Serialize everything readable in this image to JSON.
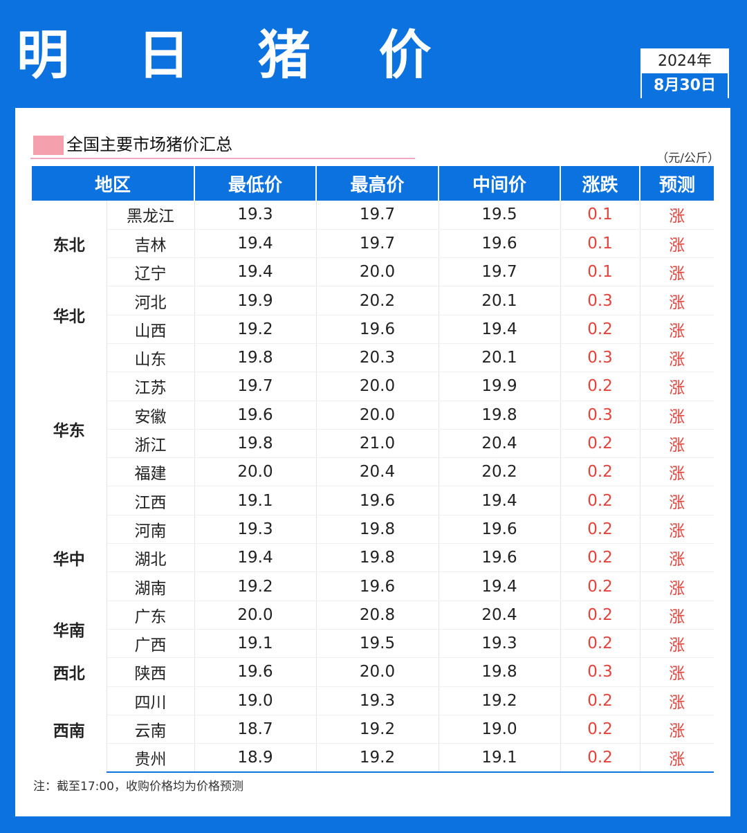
{
  "header": {
    "title": "明 日 猪 价",
    "year": "2024年",
    "date": "8月30日"
  },
  "section": {
    "title": "全国主要市场猪价汇总",
    "unit": "（元/公斤）"
  },
  "table": {
    "headers": [
      "地区",
      "最低价",
      "最高价",
      "中间价",
      "涨跌",
      "预测"
    ],
    "regions": [
      {
        "name": "东北",
        "rows": [
          {
            "province": "黑龙江",
            "low": "19.3",
            "high": "19.7",
            "mid": "19.5",
            "change": "0.1",
            "forecast": "涨"
          },
          {
            "province": "吉林",
            "low": "19.4",
            "high": "19.7",
            "mid": "19.6",
            "change": "0.1",
            "forecast": "涨"
          },
          {
            "province": "辽宁",
            "low": "19.4",
            "high": "20.0",
            "mid": "19.7",
            "change": "0.1",
            "forecast": "涨"
          }
        ]
      },
      {
        "name": "华北",
        "rows": [
          {
            "province": "河北",
            "low": "19.9",
            "high": "20.2",
            "mid": "20.1",
            "change": "0.3",
            "forecast": "涨"
          },
          {
            "province": "山西",
            "low": "19.2",
            "high": "19.6",
            "mid": "19.4",
            "change": "0.2",
            "forecast": "涨"
          }
        ]
      },
      {
        "name": "华东",
        "rows": [
          {
            "province": "山东",
            "low": "19.8",
            "high": "20.3",
            "mid": "20.1",
            "change": "0.3",
            "forecast": "涨"
          },
          {
            "province": "江苏",
            "low": "19.7",
            "high": "20.0",
            "mid": "19.9",
            "change": "0.2",
            "forecast": "涨"
          },
          {
            "province": "安徽",
            "low": "19.6",
            "high": "20.0",
            "mid": "19.8",
            "change": "0.3",
            "forecast": "涨"
          },
          {
            "province": "浙江",
            "low": "19.8",
            "high": "21.0",
            "mid": "20.4",
            "change": "0.2",
            "forecast": "涨"
          },
          {
            "province": "福建",
            "low": "20.0",
            "high": "20.4",
            "mid": "20.2",
            "change": "0.2",
            "forecast": "涨"
          },
          {
            "province": "江西",
            "low": "19.1",
            "high": "19.6",
            "mid": "19.4",
            "change": "0.2",
            "forecast": "涨"
          }
        ]
      },
      {
        "name": "华中",
        "rows": [
          {
            "province": "河南",
            "low": "19.3",
            "high": "19.8",
            "mid": "19.6",
            "change": "0.2",
            "forecast": "涨"
          },
          {
            "province": "湖北",
            "low": "19.4",
            "high": "19.8",
            "mid": "19.6",
            "change": "0.2",
            "forecast": "涨"
          },
          {
            "province": "湖南",
            "low": "19.2",
            "high": "19.6",
            "mid": "19.4",
            "change": "0.2",
            "forecast": "涨"
          }
        ]
      },
      {
        "name": "华南",
        "rows": [
          {
            "province": "广东",
            "low": "20.0",
            "high": "20.8",
            "mid": "20.4",
            "change": "0.2",
            "forecast": "涨"
          },
          {
            "province": "广西",
            "low": "19.1",
            "high": "19.5",
            "mid": "19.3",
            "change": "0.2",
            "forecast": "涨"
          }
        ]
      },
      {
        "name": "西北",
        "rows": [
          {
            "province": "陕西",
            "low": "19.6",
            "high": "20.0",
            "mid": "19.8",
            "change": "0.3",
            "forecast": "涨"
          }
        ]
      },
      {
        "name": "西南",
        "rows": [
          {
            "province": "四川",
            "low": "19.0",
            "high": "19.3",
            "mid": "19.2",
            "change": "0.2",
            "forecast": "涨"
          },
          {
            "province": "云南",
            "low": "18.7",
            "high": "19.2",
            "mid": "19.0",
            "change": "0.2",
            "forecast": "涨"
          },
          {
            "province": "贵州",
            "low": "18.9",
            "high": "19.2",
            "mid": "19.1",
            "change": "0.2",
            "forecast": "涨"
          }
        ]
      }
    ]
  },
  "note": "注：截至17:00，收购价格均为价格预测",
  "colors": {
    "brand_blue": "#0b72e0",
    "rise_red": "#e5423b",
    "marker_pink": "#f4a0ad"
  }
}
